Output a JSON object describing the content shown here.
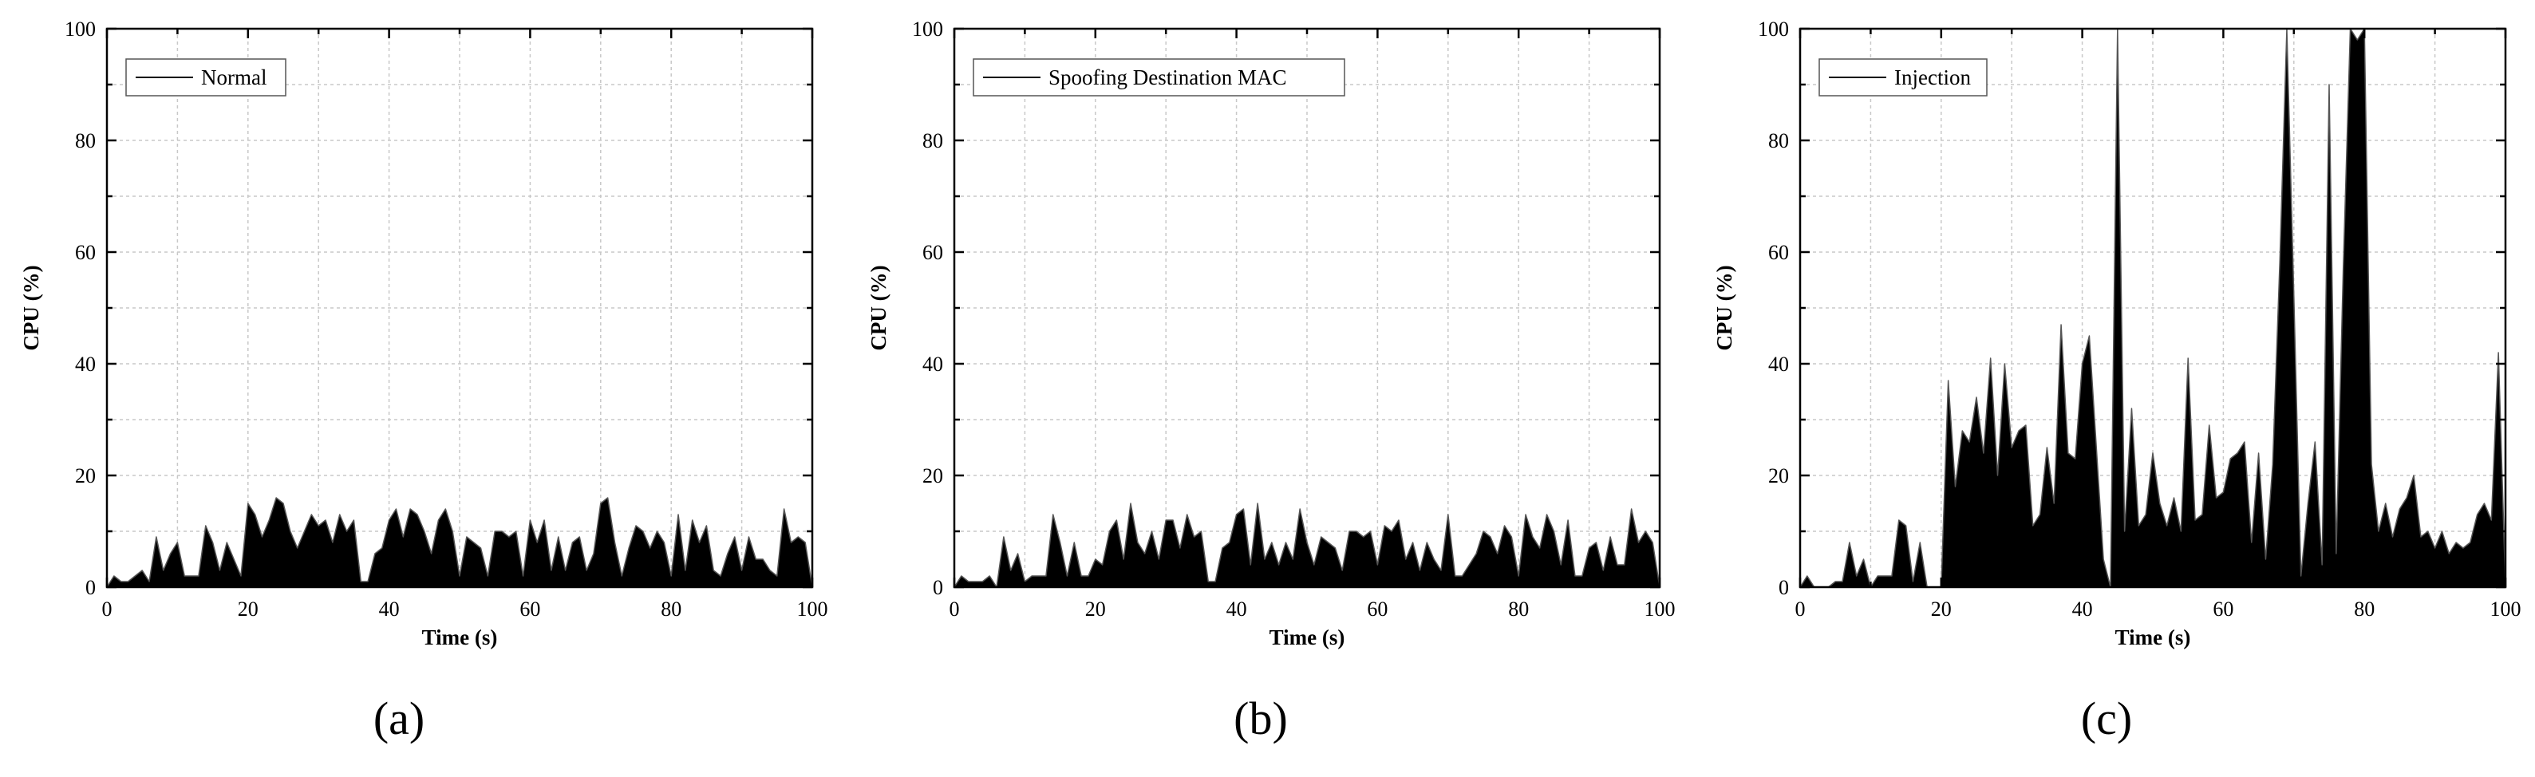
{
  "chart_data": [
    {
      "type": "area",
      "caption": "(a)",
      "xlabel": "Time (s)",
      "ylabel": "CPU (%)",
      "xlim": [
        0,
        100
      ],
      "ylim": [
        0,
        100
      ],
      "xticks": [
        0,
        20,
        40,
        60,
        80,
        100
      ],
      "yticks": [
        0,
        20,
        40,
        60,
        80,
        100
      ],
      "grid": true,
      "legend_position": "top-left",
      "series": [
        {
          "name": "Normal",
          "x": [
            0,
            1,
            2,
            3,
            4,
            5,
            6,
            7,
            8,
            9,
            10,
            11,
            12,
            13,
            14,
            15,
            16,
            17,
            18,
            19,
            20,
            21,
            22,
            23,
            24,
            25,
            26,
            27,
            28,
            29,
            30,
            31,
            32,
            33,
            34,
            35,
            36,
            37,
            38,
            39,
            40,
            41,
            42,
            43,
            44,
            45,
            46,
            47,
            48,
            49,
            50,
            51,
            52,
            53,
            54,
            55,
            56,
            57,
            58,
            59,
            60,
            61,
            62,
            63,
            64,
            65,
            66,
            67,
            68,
            69,
            70,
            71,
            72,
            73,
            74,
            75,
            76,
            77,
            78,
            79,
            80,
            81,
            82,
            83,
            84,
            85,
            86,
            87,
            88,
            89,
            90,
            91,
            92,
            93,
            94,
            95,
            96,
            97,
            98,
            99,
            100
          ],
          "y": [
            0,
            2,
            1,
            1,
            2,
            3,
            1,
            9,
            3,
            6,
            8,
            2,
            2,
            2,
            11,
            8,
            3,
            8,
            5,
            2,
            15,
            13,
            9,
            12,
            16,
            15,
            10,
            7,
            10,
            13,
            11,
            12,
            8,
            13,
            10,
            12,
            1,
            1,
            6,
            7,
            12,
            14,
            9,
            14,
            13,
            10,
            6,
            12,
            14,
            10,
            2,
            9,
            8,
            7,
            2,
            10,
            10,
            9,
            10,
            2,
            12,
            8,
            12,
            3,
            9,
            3,
            8,
            9,
            3,
            6,
            15,
            16,
            8,
            2,
            7,
            11,
            10,
            7,
            10,
            8,
            2,
            13,
            3,
            12,
            8,
            11,
            3,
            2,
            6,
            9,
            3,
            9,
            5,
            5,
            3,
            2,
            14,
            8,
            9,
            8,
            0
          ]
        }
      ]
    },
    {
      "type": "area",
      "caption": "(b)",
      "xlabel": "Time (s)",
      "ylabel": "CPU (%)",
      "xlim": [
        0,
        100
      ],
      "ylim": [
        0,
        100
      ],
      "xticks": [
        0,
        20,
        40,
        60,
        80,
        100
      ],
      "yticks": [
        0,
        20,
        40,
        60,
        80,
        100
      ],
      "grid": true,
      "legend_position": "top-left",
      "series": [
        {
          "name": "Spoofing Destination MAC",
          "x": [
            0,
            1,
            2,
            3,
            4,
            5,
            6,
            7,
            8,
            9,
            10,
            11,
            12,
            13,
            14,
            15,
            16,
            17,
            18,
            19,
            20,
            21,
            22,
            23,
            24,
            25,
            26,
            27,
            28,
            29,
            30,
            31,
            32,
            33,
            34,
            35,
            36,
            37,
            38,
            39,
            40,
            41,
            42,
            43,
            44,
            45,
            46,
            47,
            48,
            49,
            50,
            51,
            52,
            53,
            54,
            55,
            56,
            57,
            58,
            59,
            60,
            61,
            62,
            63,
            64,
            65,
            66,
            67,
            68,
            69,
            70,
            71,
            72,
            73,
            74,
            75,
            76,
            77,
            78,
            79,
            80,
            81,
            82,
            83,
            84,
            85,
            86,
            87,
            88,
            89,
            90,
            91,
            92,
            93,
            94,
            95,
            96,
            97,
            98,
            99,
            100
          ],
          "y": [
            0,
            2,
            1,
            1,
            1,
            2,
            0,
            9,
            3,
            6,
            1,
            2,
            2,
            2,
            13,
            8,
            2,
            8,
            2,
            2,
            5,
            4,
            10,
            12,
            5,
            15,
            8,
            6,
            10,
            5,
            12,
            12,
            7,
            13,
            9,
            10,
            1,
            1,
            7,
            8,
            13,
            14,
            4,
            15,
            5,
            8,
            4,
            8,
            5,
            14,
            8,
            4,
            9,
            8,
            7,
            3,
            10,
            10,
            9,
            10,
            4,
            11,
            10,
            12,
            5,
            8,
            3,
            8,
            5,
            3,
            13,
            2,
            2,
            4,
            6,
            10,
            9,
            6,
            11,
            9,
            2,
            13,
            9,
            7,
            13,
            10,
            4,
            12,
            2,
            2,
            7,
            8,
            3,
            9,
            4,
            4,
            14,
            8,
            10,
            8,
            0
          ]
        }
      ]
    },
    {
      "type": "area",
      "caption": "(c)",
      "xlabel": "Time (s)",
      "ylabel": "CPU (%)",
      "xlim": [
        0,
        100
      ],
      "ylim": [
        0,
        100
      ],
      "xticks": [
        0,
        20,
        40,
        60,
        80,
        100
      ],
      "yticks": [
        0,
        20,
        40,
        60,
        80,
        100
      ],
      "grid": true,
      "legend_position": "top-left",
      "series": [
        {
          "name": "Injection",
          "x": [
            0,
            1,
            2,
            3,
            4,
            5,
            6,
            7,
            8,
            9,
            10,
            11,
            12,
            13,
            14,
            15,
            16,
            17,
            18,
            19,
            20,
            21,
            22,
            23,
            24,
            25,
            26,
            27,
            28,
            29,
            30,
            31,
            32,
            33,
            34,
            35,
            36,
            37,
            38,
            39,
            40,
            41,
            42,
            43,
            44,
            45,
            46,
            47,
            48,
            49,
            50,
            51,
            52,
            53,
            54,
            55,
            56,
            57,
            58,
            59,
            60,
            61,
            62,
            63,
            64,
            65,
            66,
            67,
            68,
            69,
            70,
            71,
            72,
            73,
            74,
            75,
            76,
            77,
            78,
            79,
            80,
            81,
            82,
            83,
            84,
            85,
            86,
            87,
            88,
            89,
            90,
            91,
            92,
            93,
            94,
            95,
            96,
            97,
            98,
            99,
            100
          ],
          "y": [
            0,
            2,
            0,
            0,
            0,
            1,
            1,
            8,
            2,
            5,
            0,
            2,
            2,
            2,
            12,
            11,
            1,
            8,
            0,
            0,
            0,
            37,
            18,
            28,
            26,
            34,
            24,
            41,
            20,
            40,
            25,
            28,
            29,
            11,
            13,
            25,
            15,
            47,
            24,
            23,
            40,
            45,
            25,
            5,
            0,
            100,
            10,
            32,
            11,
            13,
            24,
            15,
            11,
            16,
            10,
            41,
            12,
            13,
            29,
            16,
            17,
            23,
            24,
            26,
            8,
            24,
            5,
            22,
            58,
            100,
            52,
            2,
            15,
            26,
            4,
            90,
            6,
            57,
            100,
            98,
            100,
            22,
            10,
            15,
            9,
            14,
            16,
            20,
            9,
            10,
            7,
            10,
            6,
            8,
            7,
            8,
            13,
            15,
            12,
            42,
            0
          ]
        }
      ]
    }
  ]
}
